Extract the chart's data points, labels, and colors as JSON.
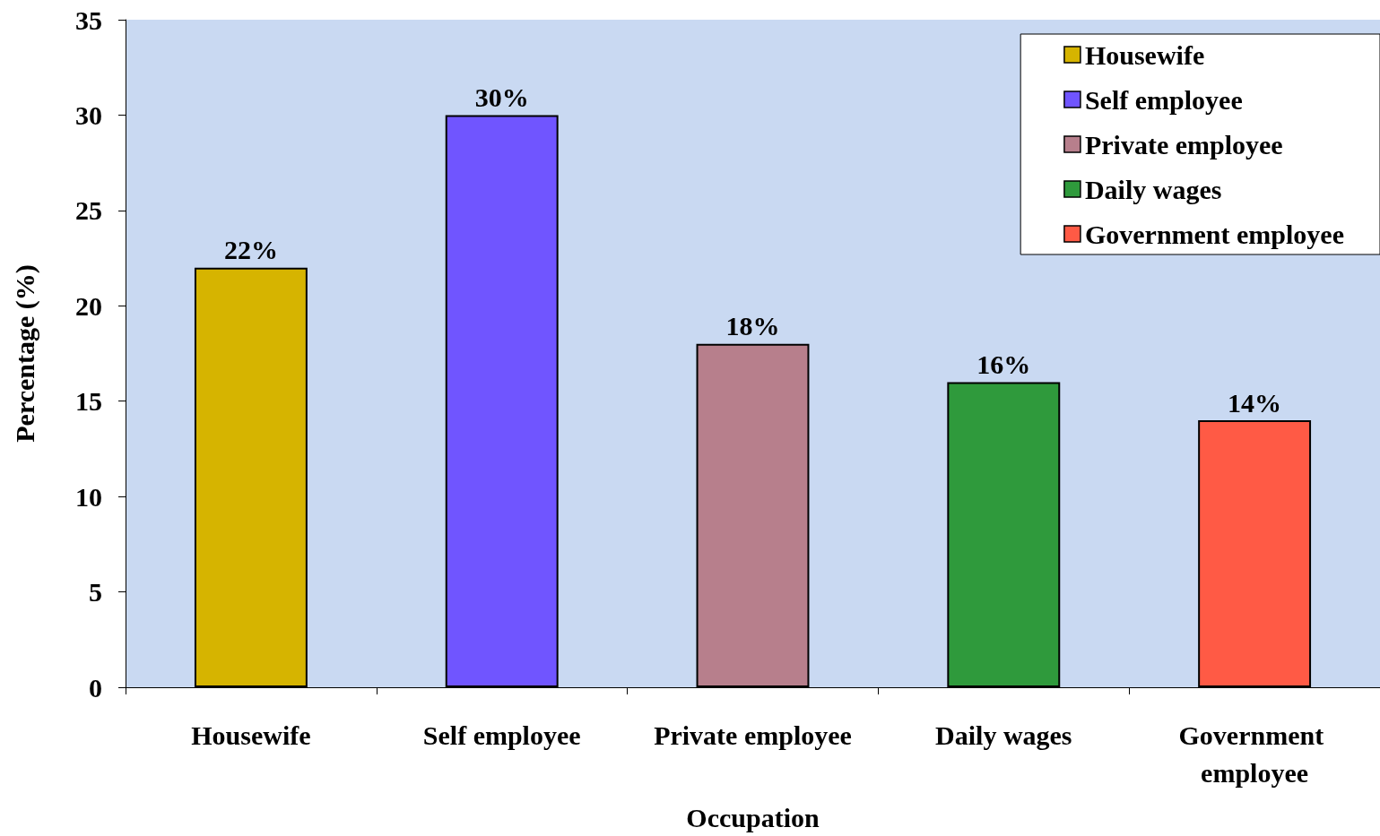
{
  "chart_data": {
    "type": "bar",
    "xlabel": "Occupation",
    "ylabel": "Percentage (%)",
    "categories": [
      "Housewife",
      "Self employee",
      "Private employee",
      "Daily wages",
      "Government employee"
    ],
    "series": [
      {
        "name": "Housewife",
        "color": "#d6b400",
        "values": [
          22,
          null,
          null,
          null,
          null
        ],
        "value_labels": [
          "22%",
          null,
          null,
          null,
          null
        ]
      },
      {
        "name": "Self employee",
        "color": "#7055ff",
        "values": [
          null,
          30,
          null,
          null,
          null
        ],
        "value_labels": [
          null,
          "30%",
          null,
          null,
          null
        ]
      },
      {
        "name": "Private employee",
        "color": "#b77f8c",
        "values": [
          null,
          null,
          18,
          null,
          null
        ],
        "value_labels": [
          null,
          null,
          "18%",
          null,
          null
        ]
      },
      {
        "name": "Daily wages",
        "color": "#2f9a3c",
        "values": [
          null,
          null,
          null,
          16,
          null
        ],
        "value_labels": [
          null,
          null,
          null,
          "16%",
          null
        ]
      },
      {
        "name": "Government employee",
        "color": "#ff5a45",
        "values": [
          null,
          null,
          null,
          null,
          14
        ],
        "value_labels": [
          null,
          null,
          null,
          null,
          "14%"
        ]
      }
    ],
    "ylim": [
      0,
      35
    ],
    "yticks": [
      0,
      5,
      10,
      15,
      20,
      25,
      30,
      35
    ],
    "grid": false,
    "legend": "top right"
  }
}
